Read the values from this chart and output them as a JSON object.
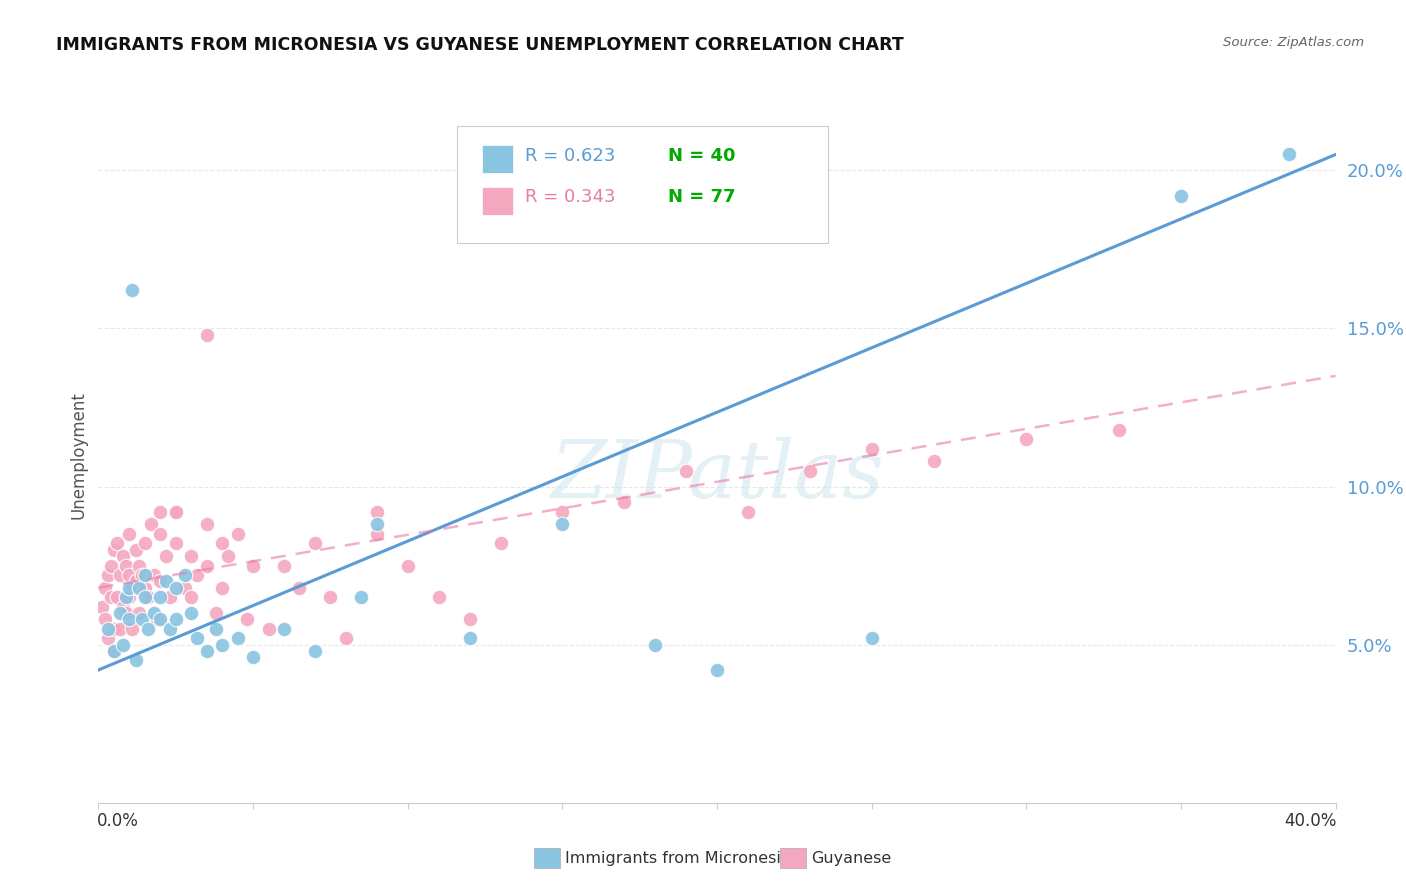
{
  "title": "IMMIGRANTS FROM MICRONESIA VS GUYANESE UNEMPLOYMENT CORRELATION CHART",
  "source": "Source: ZipAtlas.com",
  "ylabel": "Unemployment",
  "right_yticks": [
    "5.0%",
    "10.0%",
    "15.0%",
    "20.0%"
  ],
  "right_ytick_vals": [
    0.05,
    0.1,
    0.15,
    0.2
  ],
  "blue_color": "#89c4e1",
  "blue_line_color": "#5b9bd5",
  "pink_color": "#f4a8c0",
  "pink_line_color": "#e87aaa",
  "blue_scatter_x": [
    0.003,
    0.005,
    0.007,
    0.008,
    0.009,
    0.01,
    0.01,
    0.011,
    0.012,
    0.013,
    0.014,
    0.015,
    0.015,
    0.016,
    0.018,
    0.02,
    0.02,
    0.022,
    0.023,
    0.025,
    0.025,
    0.028,
    0.03,
    0.032,
    0.035,
    0.038,
    0.04,
    0.045,
    0.05,
    0.06,
    0.07,
    0.085,
    0.09,
    0.12,
    0.15,
    0.18,
    0.2,
    0.25,
    0.35,
    0.385
  ],
  "blue_scatter_y": [
    0.055,
    0.048,
    0.06,
    0.05,
    0.065,
    0.058,
    0.068,
    0.162,
    0.045,
    0.068,
    0.058,
    0.072,
    0.065,
    0.055,
    0.06,
    0.065,
    0.058,
    0.07,
    0.055,
    0.058,
    0.068,
    0.072,
    0.06,
    0.052,
    0.048,
    0.055,
    0.05,
    0.052,
    0.046,
    0.055,
    0.048,
    0.065,
    0.088,
    0.052,
    0.088,
    0.05,
    0.042,
    0.052,
    0.192,
    0.205
  ],
  "pink_scatter_x": [
    0.001,
    0.002,
    0.002,
    0.003,
    0.003,
    0.004,
    0.004,
    0.005,
    0.005,
    0.005,
    0.006,
    0.006,
    0.007,
    0.007,
    0.008,
    0.008,
    0.009,
    0.009,
    0.01,
    0.01,
    0.01,
    0.011,
    0.011,
    0.012,
    0.012,
    0.013,
    0.013,
    0.014,
    0.015,
    0.015,
    0.016,
    0.017,
    0.018,
    0.019,
    0.02,
    0.02,
    0.022,
    0.023,
    0.025,
    0.025,
    0.028,
    0.03,
    0.032,
    0.035,
    0.038,
    0.04,
    0.042,
    0.045,
    0.048,
    0.05,
    0.055,
    0.06,
    0.065,
    0.07,
    0.075,
    0.08,
    0.09,
    0.1,
    0.11,
    0.12,
    0.13,
    0.15,
    0.17,
    0.19,
    0.21,
    0.23,
    0.25,
    0.27,
    0.3,
    0.33,
    0.02,
    0.025,
    0.03,
    0.035,
    0.035,
    0.04,
    0.09
  ],
  "pink_scatter_y": [
    0.062,
    0.058,
    0.068,
    0.072,
    0.052,
    0.075,
    0.065,
    0.048,
    0.055,
    0.08,
    0.065,
    0.082,
    0.055,
    0.072,
    0.062,
    0.078,
    0.06,
    0.075,
    0.065,
    0.072,
    0.085,
    0.055,
    0.068,
    0.07,
    0.08,
    0.06,
    0.075,
    0.072,
    0.068,
    0.082,
    0.065,
    0.088,
    0.072,
    0.058,
    0.092,
    0.07,
    0.078,
    0.065,
    0.082,
    0.092,
    0.068,
    0.078,
    0.072,
    0.148,
    0.06,
    0.068,
    0.078,
    0.085,
    0.058,
    0.075,
    0.055,
    0.075,
    0.068,
    0.082,
    0.065,
    0.052,
    0.085,
    0.075,
    0.065,
    0.058,
    0.082,
    0.092,
    0.095,
    0.105,
    0.092,
    0.105,
    0.112,
    0.108,
    0.115,
    0.118,
    0.085,
    0.092,
    0.065,
    0.088,
    0.075,
    0.082,
    0.092
  ],
  "blue_line_x0": 0.0,
  "blue_line_y0": 0.042,
  "blue_line_x1": 0.4,
  "blue_line_y1": 0.205,
  "pink_line_x0": 0.0,
  "pink_line_y0": 0.068,
  "pink_line_x1": 0.4,
  "pink_line_y1": 0.135,
  "xlim": [
    0.0,
    0.4
  ],
  "ylim": [
    0.0,
    0.22
  ],
  "watermark": "ZIPatlas",
  "background_color": "#ffffff",
  "grid_color": "#e8e8e8"
}
